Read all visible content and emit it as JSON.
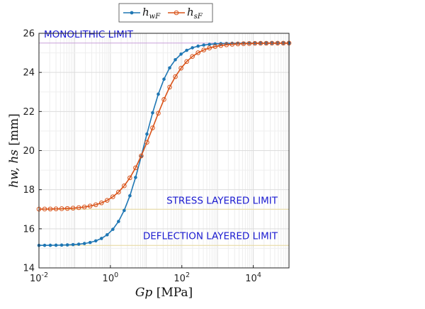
{
  "chart_data": {
    "type": "line",
    "x_scale": "log",
    "xlim": [
      0.01,
      100000
    ],
    "ylim": [
      14,
      26
    ],
    "xlabel": {
      "var": "Gp",
      "unit": "[MPa]"
    },
    "ylabel": {
      "var": "hw, hs",
      "unit": "[mm]"
    },
    "x_ticks": [
      {
        "value": 0.01,
        "base": "10",
        "exp": "-2"
      },
      {
        "value": 1,
        "base": "10",
        "exp": "0"
      },
      {
        "value": 100,
        "base": "10",
        "exp": "2"
      },
      {
        "value": 10000,
        "base": "10",
        "exp": "4"
      }
    ],
    "y_ticks": [
      14,
      16,
      18,
      20,
      22,
      24,
      26
    ],
    "grid": true,
    "legend_position": "top",
    "series": [
      {
        "name": "hwF",
        "legend_base": "h",
        "legend_sub": "wF",
        "color": "#1f77b4",
        "marker": "dot",
        "curve": {
          "lower": 15.15,
          "upper": 25.5,
          "center_log10": 0.95,
          "width": 0.36
        }
      },
      {
        "name": "hsF",
        "legend_base": "h",
        "legend_sub": "sF",
        "color": "#d95319",
        "marker": "circle",
        "curve": {
          "lower": 17.0,
          "upper": 25.5,
          "center_log10": 1.2,
          "width": 0.45
        }
      }
    ],
    "reference_lines": [
      {
        "label": "MONOLITHIC LIMIT",
        "y": 25.5,
        "color": "#c9a0dc"
      },
      {
        "label": "STRESS LAYERED LIMIT",
        "y": 17.0,
        "color": "#e6d79a"
      },
      {
        "label": "DEFLECTION LAYERED LIMIT",
        "y": 15.15,
        "color": "#e6d79a"
      }
    ],
    "n_points": 45
  }
}
